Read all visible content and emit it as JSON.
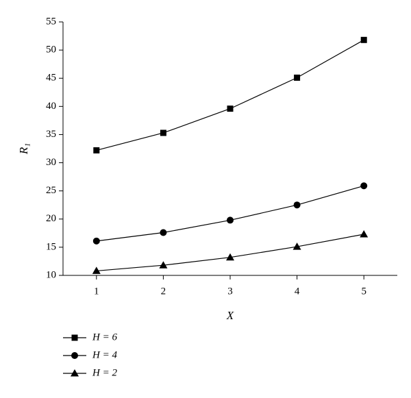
{
  "chart_data": {
    "type": "line",
    "x_label": "X",
    "y_label": "R₁",
    "x": [
      1,
      2,
      3,
      4,
      5
    ],
    "series": [
      {
        "name": "H = 6",
        "color": "#000000",
        "marker": "square",
        "values": [
          32.2,
          35.3,
          39.6,
          45.1,
          51.8
        ]
      },
      {
        "name": "H = 4",
        "color": "#000000",
        "marker": "circle",
        "values": [
          16.1,
          17.6,
          19.8,
          22.5,
          25.9
        ]
      },
      {
        "name": "H = 2",
        "color": "#000000",
        "marker": "triangle",
        "values": [
          10.8,
          11.8,
          13.2,
          15.1,
          17.3
        ]
      }
    ],
    "xlim": [
      0.5,
      5.5
    ],
    "xticks": [
      1,
      2,
      3,
      4,
      5
    ],
    "ylim": [
      10,
      55
    ],
    "yticks": [
      10,
      15,
      20,
      25,
      30,
      35,
      40,
      45,
      50,
      55
    ],
    "grid": false,
    "legend": "bottom-left"
  }
}
